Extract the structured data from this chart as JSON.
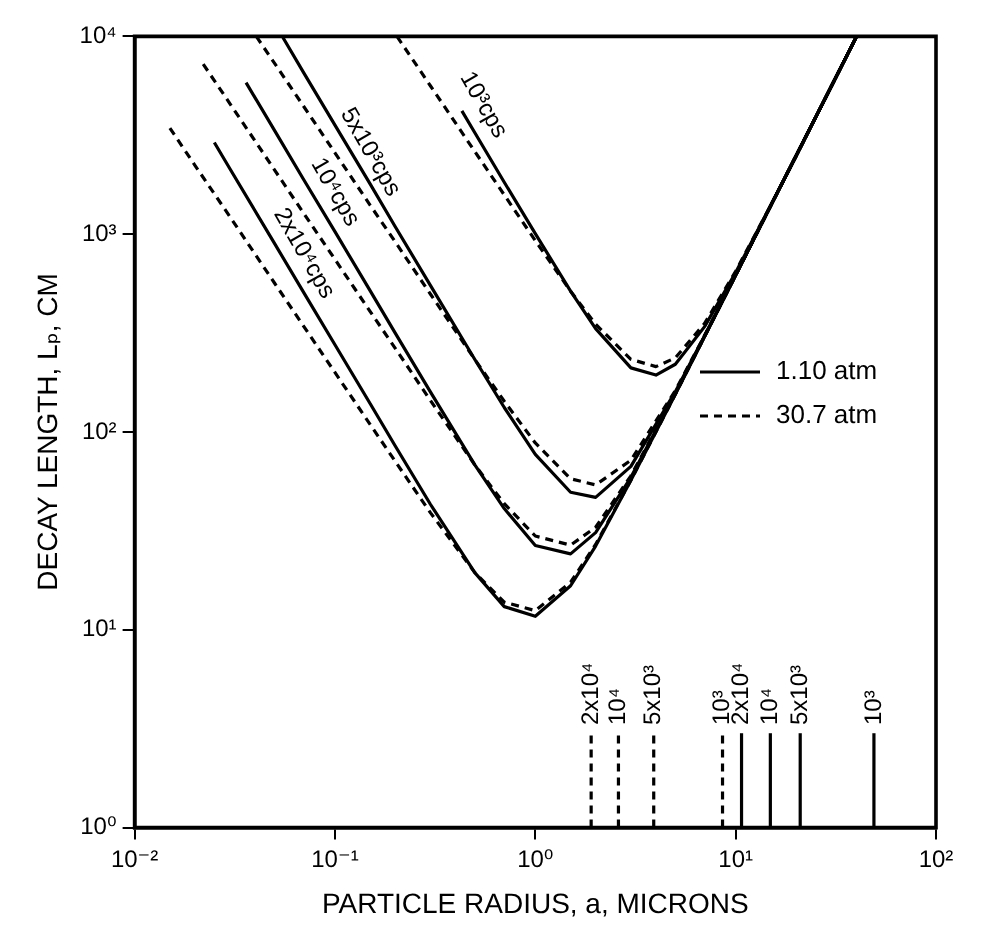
{
  "chart_data": {
    "type": "line",
    "xlabel": "PARTICLE RADIUS, a, MICRONS",
    "ylabel": "DECAY LENGTH, Lₚ, CM",
    "log": "xy",
    "grid": false,
    "legend": "right",
    "xlim": [
      0.01,
      100
    ],
    "xticks": [
      {
        "value": 0.01,
        "label": "10⁻²"
      },
      {
        "value": 0.1,
        "label": "10⁻¹"
      },
      {
        "value": 1,
        "label": "10⁰"
      },
      {
        "value": 10,
        "label": "10¹"
      },
      {
        "value": 100,
        "label": "10²"
      }
    ],
    "ylim": [
      1,
      10000
    ],
    "yticks": [
      {
        "value": 1,
        "label": "10⁰"
      },
      {
        "value": 10,
        "label": "10¹"
      },
      {
        "value": 100,
        "label": "10²"
      },
      {
        "value": 1000,
        "label": "10³"
      },
      {
        "value": 10000,
        "label": "10⁴"
      }
    ],
    "series": [
      {
        "name": "1.10 atm",
        "color": "#000000",
        "line_style": "solid",
        "x": [
          0.025,
          0.03,
          0.05,
          0.07,
          0.1,
          0.15,
          0.2,
          0.3,
          0.5,
          0.7,
          1,
          1.5,
          2,
          3,
          5,
          7,
          10,
          15,
          20,
          30,
          40
        ],
        "values": [
          2910,
          2130,
          896,
          505,
          276,
          139,
          85,
          43,
          19.4,
          13.1,
          11.7,
          16.7,
          26.5,
          57,
          155,
          304,
          620,
          1400,
          2480,
          5580,
          9920
        ]
      },
      {
        "color": "#000000",
        "line_style": "solid",
        "x": [
          0.036,
          0.05,
          0.07,
          0.1,
          0.15,
          0.2,
          0.3,
          0.5,
          0.7,
          1,
          1.5,
          2,
          3,
          5,
          7,
          10,
          15,
          20,
          30,
          40
        ],
        "values": [
          5840,
          3340,
          1880,
          1030,
          517,
          316,
          159,
          68,
          41,
          26.7,
          24.2,
          31,
          59,
          156,
          305,
          620,
          1400,
          2480,
          5580,
          9920
        ]
      },
      {
        "color": "#000000",
        "line_style": "solid",
        "x": [
          0.055,
          0.07,
          0.1,
          0.15,
          0.2,
          0.3,
          0.5,
          0.7,
          1,
          1.5,
          2,
          3,
          5,
          7,
          10,
          15,
          20,
          30,
          40
        ],
        "values": [
          9870,
          6520,
          3560,
          1790,
          1090,
          550,
          232,
          133,
          77,
          49.6,
          46.7,
          67,
          160,
          307,
          621,
          1400,
          2480,
          5580,
          9920
        ]
      },
      {
        "color": "#000000",
        "line_style": "solid",
        "x": [
          0.43,
          0.5,
          0.7,
          1,
          1.5,
          2,
          3,
          4,
          5,
          7,
          10,
          15,
          20,
          30,
          40
        ],
        "values": [
          4200,
          3250,
          1830,
          1006,
          516,
          333,
          211,
          194,
          220,
          341,
          640,
          1405,
          2490,
          5580,
          9920
        ]
      },
      {
        "name": "30.7 atm",
        "color": "#000000",
        "line_style": "dashed",
        "x": [
          0.015,
          0.02,
          0.03,
          0.05,
          0.07,
          0.1,
          0.15,
          0.2,
          0.3,
          0.5,
          0.7,
          1,
          1.5,
          2,
          3,
          5,
          7,
          10,
          15,
          20,
          30,
          40
        ],
        "values": [
          3440,
          2230,
          1220,
          565,
          341,
          200,
          109,
          71,
          39,
          19.4,
          13.8,
          12.5,
          17.4,
          27,
          57,
          155,
          304,
          620,
          1400,
          2480,
          5580,
          9920
        ]
      },
      {
        "color": "#000000",
        "line_style": "dashed",
        "x": [
          0.022,
          0.03,
          0.05,
          0.07,
          0.1,
          0.15,
          0.2,
          0.3,
          0.5,
          0.7,
          1,
          1.5,
          2,
          3,
          5,
          7,
          10,
          15,
          20,
          30,
          40
        ],
        "values": [
          7240,
          4550,
          2110,
          1270,
          746,
          406,
          265,
          144,
          68,
          43.4,
          29.8,
          26.8,
          33,
          60,
          157,
          305,
          621,
          1400,
          2480,
          5580,
          9920
        ]
      },
      {
        "color": "#000000",
        "line_style": "dashed",
        "x": [
          0.0405,
          0.05,
          0.07,
          0.1,
          0.15,
          0.2,
          0.3,
          0.5,
          0.7,
          1,
          1.5,
          2,
          3,
          5,
          7,
          10,
          15,
          20,
          30,
          40
        ],
        "values": [
          10000,
          7300,
          4410,
          2580,
          1400,
          914,
          497,
          232,
          143,
          88,
          58,
          54,
          72,
          162,
          308,
          623,
          1400,
          2480,
          5580,
          9920
        ]
      },
      {
        "color": "#000000",
        "line_style": "dashed",
        "x": [
          0.204,
          0.3,
          0.5,
          0.7,
          1,
          1.5,
          2,
          3,
          4,
          5,
          7,
          10,
          15,
          20,
          30,
          40
        ],
        "values": [
          10000,
          5615,
          2610,
          1580,
          928,
          515,
          351,
          233,
          214,
          237,
          354,
          649,
          1405,
          2490,
          5580,
          9920
        ]
      },
      {
        "color": "#000000",
        "line_style": "dashed",
        "x": [
          1.9,
          1.9
        ],
        "values": [
          1,
          3
        ]
      },
      {
        "color": "#000000",
        "line_style": "dashed",
        "x": [
          2.6,
          2.6
        ],
        "values": [
          1,
          3
        ]
      },
      {
        "color": "#000000",
        "line_style": "dashed",
        "x": [
          3.9,
          3.9
        ],
        "values": [
          1,
          3
        ]
      },
      {
        "color": "#000000",
        "line_style": "dashed",
        "x": [
          8.6,
          8.6
        ],
        "values": [
          1,
          3
        ]
      },
      {
        "color": "#000000",
        "line_style": "solid",
        "x": [
          10.7,
          10.7
        ],
        "values": [
          1,
          3
        ]
      },
      {
        "color": "#000000",
        "line_style": "solid",
        "x": [
          14.9,
          14.9
        ],
        "values": [
          1,
          3
        ]
      },
      {
        "color": "#000000",
        "line_style": "solid",
        "x": [
          21,
          21
        ],
        "values": [
          1,
          3
        ]
      },
      {
        "color": "#000000",
        "line_style": "solid",
        "x": [
          49,
          49
        ],
        "values": [
          1,
          3
        ]
      }
    ],
    "annotations": [
      "2x10⁴cps",
      "10⁴cps",
      "5x10³cps",
      "10³cps",
      {
        "text": "2x10⁴",
        "x": 1.9,
        "y": 3.3
      },
      {
        "text": "10⁴",
        "x": 2.6,
        "y": 3.3
      },
      {
        "text": "5x10³",
        "x": 3.9,
        "y": 3.3
      },
      {
        "text": "10³",
        "x": 8.6,
        "y": 3.3
      },
      {
        "text": "2x10⁴",
        "x": 10.7,
        "y": 3.3
      },
      {
        "text": "10⁴",
        "x": 14.9,
        "y": 3.3
      },
      {
        "text": "5x10³",
        "x": 21,
        "y": 3.3
      },
      {
        "text": "10³",
        "x": 49,
        "y": 3.3
      }
    ]
  }
}
